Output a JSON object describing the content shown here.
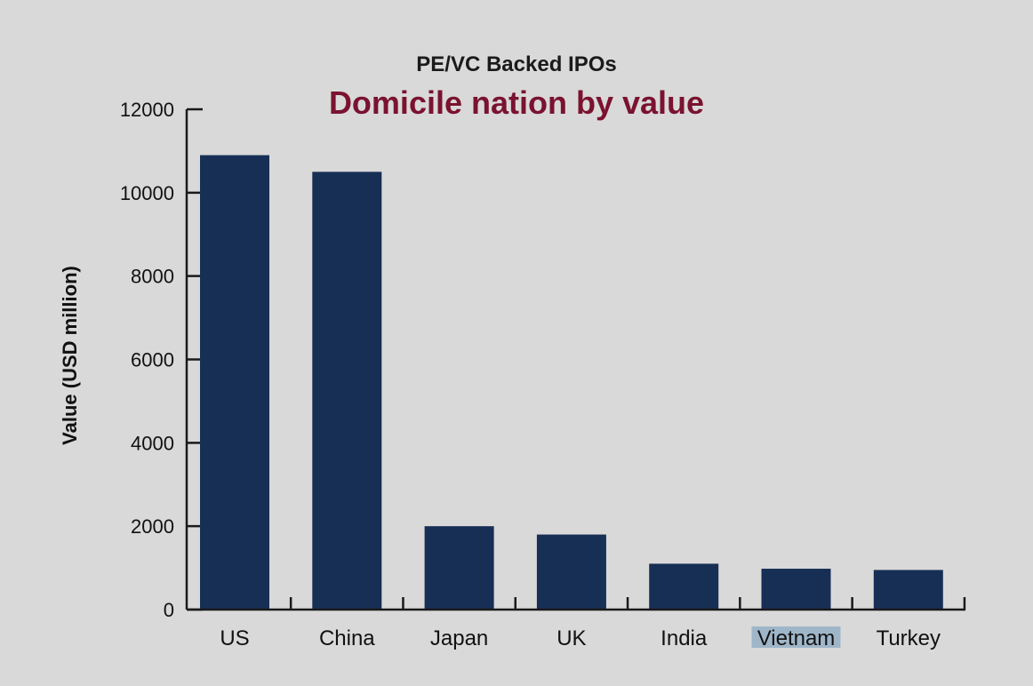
{
  "chart_data": {
    "type": "bar",
    "subtitle": "PE/VC Backed IPOs",
    "title": "Domicile nation by value",
    "xlabel": "",
    "ylabel": "Value (USD million)",
    "categories": [
      "US",
      "China",
      "Japan",
      "UK",
      "India",
      "Vietnam",
      "Turkey"
    ],
    "values": [
      10900,
      10500,
      2000,
      1800,
      1100,
      980,
      950
    ],
    "yticks": [
      0,
      2000,
      4000,
      6000,
      8000,
      10000,
      12000
    ],
    "ylim": [
      0,
      12000
    ],
    "grid": false,
    "legend": "none",
    "highlighted_category": "Vietnam",
    "colors": {
      "bar": "#172f55",
      "title": "#7a1230",
      "subtitle": "#1a1a1a",
      "axis": "#1a1a1a",
      "background": "#d9d9d9",
      "highlight": "#9fb6c9"
    }
  }
}
